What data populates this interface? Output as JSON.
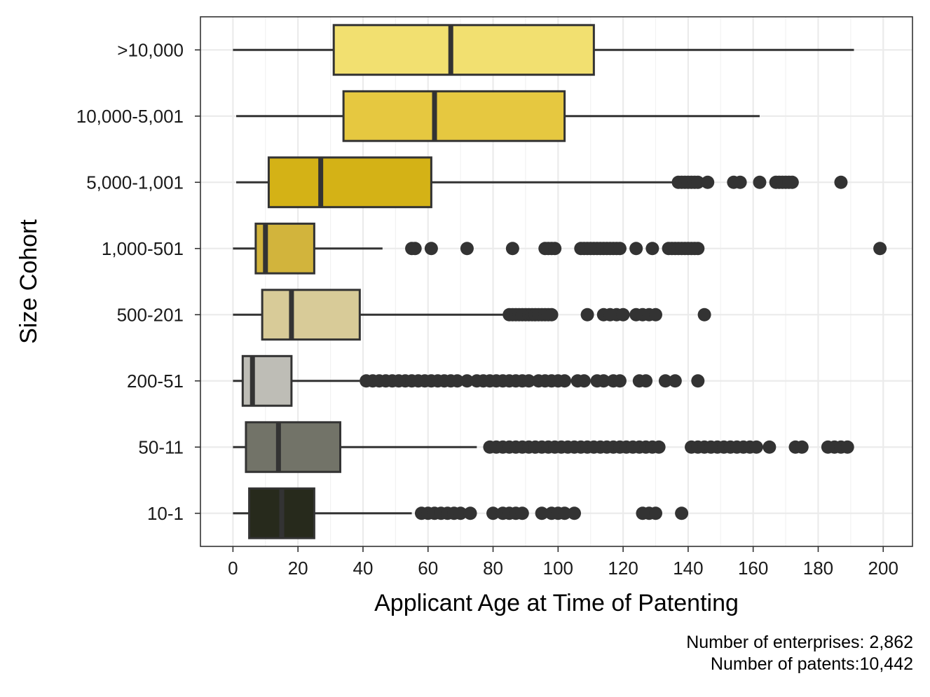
{
  "chart_data": {
    "type": "boxplot",
    "orientation": "horizontal",
    "xlabel": "Applicant Age at Time of Patenting",
    "ylabel": "Size Cohort",
    "xlim": [
      -10,
      209
    ],
    "x_ticks": [
      0,
      20,
      40,
      60,
      80,
      100,
      120,
      140,
      160,
      180,
      200
    ],
    "grid": true,
    "categories": [
      ">10,000",
      "10,000-5,001",
      "5,000-1,001",
      "1,000-501",
      "500-201",
      "200-51",
      "50-11",
      "10-1"
    ],
    "boxes": [
      {
        "category": ">10,000",
        "min": 0,
        "q1": 31,
        "median": 67,
        "q3": 111,
        "max": 191,
        "fill": "#f2e070",
        "outliers": []
      },
      {
        "category": "10,000-5,001",
        "min": 1,
        "q1": 34,
        "median": 62,
        "q3": 102,
        "max": 162,
        "fill": "#e6c840",
        "outliers": []
      },
      {
        "category": "5,000-1,001",
        "min": 1,
        "q1": 11,
        "median": 27,
        "q3": 61,
        "max": 135,
        "fill": "#d4b216",
        "outliers": [
          137,
          138,
          139,
          140,
          141,
          142,
          143,
          146,
          154,
          156,
          162,
          167,
          168,
          169,
          170,
          171,
          172,
          187
        ]
      },
      {
        "category": "1,000-501",
        "min": 0,
        "q1": 7,
        "median": 10,
        "q3": 25,
        "max": 46,
        "fill": "#d2b43c",
        "outliers": [
          55,
          56,
          61,
          72,
          86,
          96,
          97,
          98,
          99,
          107,
          108,
          109,
          110,
          111,
          112,
          113,
          114,
          115,
          116,
          117,
          118,
          119,
          124,
          129,
          134,
          135,
          136,
          137,
          138,
          139,
          140,
          141,
          142,
          143,
          199
        ]
      },
      {
        "category": "500-201",
        "min": 0,
        "q1": 9,
        "median": 18,
        "q3": 39,
        "max": 83,
        "fill": "#d8cb98",
        "outliers": [
          85,
          86,
          87,
          88,
          89,
          90,
          91,
          92,
          93,
          94,
          95,
          96,
          97,
          98,
          109,
          114,
          116,
          118,
          120,
          124,
          126,
          128,
          130,
          145
        ]
      },
      {
        "category": "200-51",
        "min": 0,
        "q1": 3,
        "median": 6,
        "q3": 18,
        "max": 39,
        "fill": "#bebdb6",
        "outliers": [
          41,
          43,
          45,
          47,
          49,
          51,
          53,
          55,
          57,
          59,
          61,
          63,
          65,
          67,
          69,
          72,
          75,
          77,
          79,
          81,
          83,
          85,
          87,
          89,
          91,
          94,
          96,
          98,
          100,
          102,
          106,
          108,
          112,
          114,
          117,
          119,
          125,
          127,
          133,
          136,
          143
        ]
      },
      {
        "category": "50-11",
        "min": 0,
        "q1": 4,
        "median": 14,
        "q3": 33,
        "max": 75,
        "fill": "#727368",
        "outliers": [
          79,
          81,
          83,
          85,
          87,
          89,
          91,
          93,
          95,
          97,
          99,
          101,
          103,
          105,
          107,
          109,
          111,
          113,
          115,
          117,
          119,
          121,
          123,
          125,
          127,
          129,
          131,
          141,
          143,
          145,
          147,
          149,
          151,
          153,
          155,
          157,
          159,
          161,
          165,
          173,
          175,
          183,
          185,
          187,
          189
        ]
      },
      {
        "category": "10-1",
        "min": 0,
        "q1": 5,
        "median": 15,
        "q3": 25,
        "max": 55,
        "fill": "#272a1c",
        "outliers": [
          58,
          60,
          62,
          64,
          66,
          68,
          70,
          73,
          80,
          83,
          85,
          87,
          89,
          95,
          98,
          100,
          102,
          105,
          126,
          128,
          130,
          138
        ]
      }
    ]
  },
  "caption": {
    "line1": "Number of enterprises: 2,862",
    "line2": "Number of patents:10,442"
  }
}
